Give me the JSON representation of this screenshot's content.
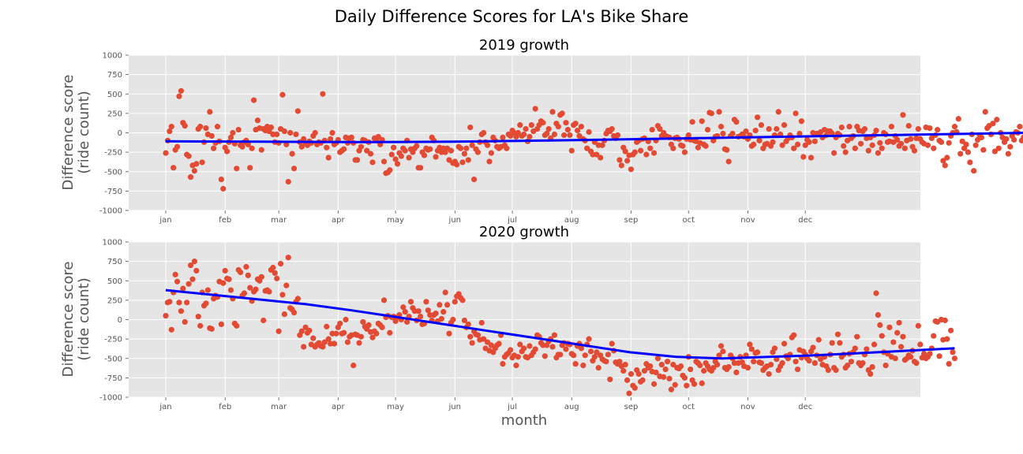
{
  "figure": {
    "title": "Daily Difference Scores for LA's Bike Share"
  },
  "chart_data": [
    {
      "type": "scatter",
      "title": "2019 growth",
      "xlabel": "",
      "ylabel": "Difference score\n(ride count)",
      "x_ticks": [
        "jan",
        "feb",
        "mar",
        "apr",
        "may",
        "jun",
        "jul",
        "aug",
        "sep",
        "oct",
        "nov",
        "dec"
      ],
      "x_tick_days": [
        0,
        31,
        59,
        90,
        120,
        151,
        181,
        212,
        243,
        273,
        304,
        334
      ],
      "ylim": [
        -1000,
        1000
      ],
      "y_ticks": [
        -1000,
        -750,
        -500,
        -250,
        0,
        250,
        500,
        750,
        1000
      ],
      "grid": true,
      "scatter_y": [
        -260,
        -100,
        20,
        80,
        -450,
        -220,
        -180,
        470,
        540,
        130,
        90,
        -280,
        -300,
        -570,
        -420,
        -490,
        -400,
        50,
        80,
        -380,
        -120,
        60,
        -20,
        270,
        -40,
        -200,
        -130,
        80,
        -110,
        -600,
        -720,
        -190,
        -240,
        -120,
        -60,
        0,
        -140,
        -460,
        40,
        -160,
        -180,
        -120,
        -100,
        -150,
        -450,
        -200,
        420,
        40,
        160,
        60,
        -220,
        50,
        30,
        80,
        20,
        70,
        -20,
        -120,
        -20,
        -130,
        50,
        490,
        20,
        -150,
        -630,
        0,
        -270,
        -460,
        -20,
        280,
        -120,
        -180,
        -80,
        -140,
        -160,
        -110,
        -130,
        -40,
        0,
        -150,
        -120,
        -130,
        500,
        -100,
        -190,
        -320,
        -80,
        0,
        -150,
        -130,
        -90,
        -250,
        -230,
        -210,
        -60,
        -130,
        -70,
        -60,
        -130,
        -350,
        -350,
        -230,
        -180,
        -90,
        -100,
        -230,
        -120,
        -270,
        -380,
        -70,
        -100,
        -50,
        -150,
        -90,
        -370,
        -520,
        -510,
        -480,
        -280,
        -190,
        -340,
        -400,
        -260,
        -300,
        -200,
        -230,
        -100,
        -320,
        -210,
        -250,
        -200,
        -170,
        -450,
        -450,
        -250,
        -290,
        -200,
        -220,
        -210,
        -60,
        -100,
        -310,
        -230,
        -190,
        -250,
        -200,
        -250,
        -200,
        -350,
        -230,
        -390,
        -370,
        -410,
        -180,
        -200,
        -380,
        -270,
        -200,
        -350,
        70,
        -160,
        -600,
        -210,
        -250,
        -120,
        -20,
        0,
        -120,
        -160,
        -370,
        -260,
        -60,
        -100,
        -180,
        -200,
        -180,
        -60,
        -160,
        -200,
        -20,
        -40,
        30,
        0,
        -50,
        0,
        100,
        -40,
        -20,
        50,
        -110,
        -50,
        100,
        20,
        310,
        50,
        100,
        150,
        130,
        -30,
        -10,
        50,
        -70,
        270,
        -20,
        120,
        80,
        230,
        250,
        -30,
        130,
        40,
        -30,
        -230,
        100,
        120,
        30,
        -40,
        80,
        -80,
        -100,
        -200,
        10,
        -240,
        -280,
        -120,
        -280,
        -160,
        -320,
        -160,
        -100,
        -10,
        30,
        20,
        50,
        -40,
        -70,
        -30,
        -350,
        -420,
        -190,
        -240,
        -360,
        -290,
        -470,
        -280,
        -250,
        -120,
        -100,
        -230,
        -80,
        -70,
        -280,
        -110,
        -200,
        40,
        -260,
        -100,
        90,
        50,
        -40,
        0,
        -40,
        -50,
        -60,
        -150,
        -200,
        -70,
        -60,
        -80,
        -160,
        -170,
        -250,
        -80,
        -30,
        -90,
        140,
        -100,
        -110,
        -190,
        -130,
        150,
        -150,
        -170,
        40,
        260,
        250,
        -100,
        -50,
        -40,
        270,
        80,
        -10,
        -210,
        -220,
        -370,
        -40,
        -10,
        170,
        140,
        -50,
        -40,
        -20,
        -50,
        20,
        -80,
        -30,
        -170,
        -150,
        30,
        200,
        -100,
        100,
        -200,
        -150,
        -140,
        50,
        -170,
        -120,
        -30,
        50,
        270,
        -20,
        -160,
        100,
        -110,
        -70,
        -30,
        -60,
        -200,
        250,
        -150,
        -10,
        150,
        -310,
        -160,
        -90,
        -120,
        -320,
        0,
        -110,
        -10,
        -10,
        10,
        -60,
        40,
        -30,
        20,
        20,
        -10,
        -260,
        -60,
        -10,
        -30,
        70,
        -170,
        -250,
        -100,
        80,
        -70,
        -40,
        -200,
        80,
        30,
        -140,
        20,
        50,
        -70,
        -230,
        -60,
        -160,
        -30,
        30,
        -260,
        -130,
        -200,
        0,
        -20,
        -120,
        -110,
        80,
        -120,
        -40,
        -90,
        -170,
        -140,
        230,
        -200,
        -100,
        90,
        -80,
        -180,
        -230,
        -70,
        50,
        -80,
        -120,
        -140,
        70,
        -160,
        60,
        -70,
        -200,
        -30,
        40,
        -100,
        -120,
        -360,
        -420,
        -320,
        -130,
        -40,
        0,
        80,
        10,
        180,
        -270,
        -110,
        -200,
        -150,
        -250,
        -380,
        -20,
        -490,
        -160,
        -90,
        -30,
        -60,
        -220,
        270,
        60,
        90,
        -20,
        120,
        -240,
        170,
        -200,
        0,
        -60,
        -120,
        -80,
        -270,
        -180,
        -40,
        -90,
        10,
        0,
        80,
        -100,
        -60,
        -40,
        -180,
        -60,
        -130,
        -100,
        -40,
        -70,
        130,
        -110,
        -200,
        130,
        -160,
        -20,
        40,
        -10,
        -240,
        -200,
        -70,
        -120,
        90,
        -120,
        -180,
        -150,
        100,
        -100,
        -110,
        -120,
        -70,
        -240,
        -210,
        50,
        -180,
        -150,
        -40,
        -120,
        -160,
        -20,
        200,
        -30,
        120,
        -10,
        -70,
        -250,
        -200,
        -30,
        0,
        -20,
        60,
        -10,
        -10,
        40,
        -60,
        -120,
        -400,
        -120,
        -180,
        -80,
        -200,
        -350,
        -70,
        -300,
        -320,
        -280,
        -200,
        -60,
        -170,
        -110,
        -190,
        -40,
        40,
        -20,
        -210,
        -150,
        -80,
        -100,
        -40,
        -230,
        -110,
        -150,
        -80,
        -100,
        -120,
        -80,
        -200,
        -130,
        40,
        -60,
        -100,
        -70,
        -120,
        -160,
        -20,
        -50,
        -50,
        -30,
        -90,
        -110,
        -60,
        -180,
        -120,
        -170,
        -70,
        -130,
        -130,
        -40,
        -80,
        -130,
        -200,
        -50,
        -70,
        -80,
        -90,
        -230,
        -100,
        -110,
        -150,
        -60,
        -10,
        -30,
        -90,
        -20,
        -40,
        -120,
        -100,
        -60,
        -130,
        -110,
        -170,
        -70,
        -160,
        -120,
        -50,
        -60,
        80,
        -30,
        -60,
        -170,
        -50,
        -60,
        -20,
        -10,
        -20,
        -50,
        -30,
        -80,
        -60,
        -120,
        -110,
        -30,
        -60,
        -170,
        -110
      ],
      "trend_y": [
        -110,
        -115,
        -120,
        -115,
        -100,
        -80,
        -60,
        -40,
        -20,
        0,
        20,
        40,
        60
      ]
    },
    {
      "type": "scatter",
      "title": "2020 growth",
      "xlabel": "month",
      "ylabel": "Difference score\n(ride count)",
      "x_ticks": [
        "jan",
        "feb",
        "mar",
        "apr",
        "may",
        "jun",
        "jul",
        "aug",
        "sep",
        "oct",
        "nov",
        "dec"
      ],
      "x_tick_days": [
        0,
        31,
        59,
        90,
        120,
        151,
        181,
        212,
        243,
        273,
        304,
        334
      ],
      "ylim": [
        -1000,
        1000
      ],
      "y_ticks": [
        -1000,
        -750,
        -500,
        -250,
        0,
        250,
        500,
        750,
        1000
      ],
      "grid": true,
      "scatter_y": [
        50,
        220,
        230,
        -130,
        350,
        580,
        490,
        220,
        110,
        400,
        -30,
        220,
        460,
        700,
        520,
        750,
        630,
        40,
        -80,
        350,
        180,
        210,
        380,
        -110,
        -120,
        270,
        310,
        290,
        490,
        -60,
        470,
        630,
        530,
        520,
        380,
        270,
        -50,
        -80,
        640,
        610,
        310,
        340,
        680,
        570,
        410,
        240,
        360,
        390,
        520,
        500,
        550,
        -10,
        370,
        380,
        360,
        640,
        670,
        600,
        530,
        -150,
        720,
        320,
        70,
        440,
        800,
        150,
        130,
        90,
        230,
        270,
        -200,
        -150,
        -350,
        -100,
        -170,
        -140,
        -320,
        -240,
        -350,
        -320,
        -300,
        -340,
        -350,
        -290,
        -90,
        -250,
        -310,
        -180,
        -310,
        -180,
        -100,
        -50,
        -180,
        -170,
        0,
        -290,
        -220,
        -200,
        -590,
        -190,
        -200,
        -300,
        -220,
        -30,
        -90,
        -120,
        -70,
        -160,
        -230,
        -150,
        -180,
        -50,
        -70,
        -100,
        250,
        30,
        50,
        -170,
        30,
        40,
        -20,
        30,
        60,
        0,
        160,
        100,
        -30,
        40,
        230,
        150,
        110,
        -10,
        110,
        40,
        -60,
        -50,
        230,
        120,
        60,
        -10,
        60,
        80,
        -20,
        190,
        10,
        100,
        350,
        190,
        -180,
        -40,
        0,
        230,
        300,
        330,
        280,
        250,
        -10,
        -100,
        -60,
        -220,
        -300,
        -150,
        -190,
        -200,
        -260,
        -40,
        -250,
        -370,
        -290,
        -400,
        -330,
        -420,
        -370,
        -330,
        -310,
        -200,
        -570,
        -480,
        -450,
        -430,
        -390,
        -490,
        -460,
        -590,
        -480,
        -320,
        -410,
        -370,
        -480,
        -490,
        -340,
        -460,
        -420,
        -380,
        -200,
        -220,
        -300,
        -330,
        -470,
        -330,
        -280,
        -250,
        -350,
        -200,
        -490,
        -450,
        -450,
        -330,
        -300,
        -380,
        -310,
        -320,
        -440,
        -460,
        -570,
        -340,
        -310,
        -370,
        -590,
        -460,
        -320,
        -250,
        -410,
        -530,
        -480,
        -420,
        -620,
        -460,
        -510,
        -530,
        -540,
        -450,
        -770,
        -310,
        -400,
        -550,
        -570,
        -540,
        -600,
        -660,
        -580,
        -780,
        -950,
        -700,
        -850,
        -880,
        -650,
        -700,
        -800,
        -780,
        -660,
        -570,
        -620,
        -600,
        -670,
        -830,
        -680,
        -500,
        -730,
        -580,
        -740,
        -640,
        -540,
        -760,
        -900,
        -580,
        -840,
        -620,
        -630,
        -600,
        -720,
        -750,
        -850,
        -480,
        -640,
        -780,
        -830,
        -540,
        -560,
        -590,
        -820,
        -660,
        -560,
        -600,
        -640,
        -660,
        -620,
        -540,
        -580,
        -460,
        -340,
        -410,
        -620,
        -640,
        -610,
        -460,
        -500,
        -560,
        -680,
        -560,
        -480,
        -550,
        -600,
        -460,
        -620,
        -320,
        -380,
        -540,
        -430,
        -420,
        -550,
        -560,
        -650,
        -620,
        -600,
        -700,
        -580,
        -420,
        -370,
        -510,
        -650,
        -600,
        -560,
        -310,
        -470,
        -500,
        -450,
        -230,
        -200,
        -540,
        -640,
        -390,
        -490,
        -410,
        -450,
        -500,
        -530,
        -410,
        -360,
        -560,
        -460,
        -260,
        -510,
        -580,
        -480,
        -600,
        -650,
        -450,
        -300,
        -620,
        -650,
        -190,
        -300,
        -480,
        -450,
        -620,
        -590,
        -440,
        -540,
        -420,
        -370,
        -220,
        -560,
        -590,
        -560,
        -450,
        -380,
        -650,
        -700,
        -610,
        -320,
        340,
        60,
        -70,
        -210,
        -420,
        -590,
        -440,
        -100,
        -480,
        -290,
        -500,
        -170,
        -40,
        -350,
        -220,
        -520,
        -500,
        -460,
        -480,
        -400,
        -540,
        -560,
        -80,
        -320,
        -490,
        -440,
        -500,
        -480,
        -440,
        -370,
        -210,
        -20,
        -30,
        -470,
        0,
        -260,
        -10,
        -250,
        -570,
        -140,
        -420,
        -500
      ],
      "trend_y": [
        380,
        320,
        260,
        200,
        120,
        30,
        -60,
        -150,
        -240,
        -330,
        -420,
        -480,
        -500,
        -480,
        -460,
        -430,
        -400,
        -370
      ]
    }
  ]
}
